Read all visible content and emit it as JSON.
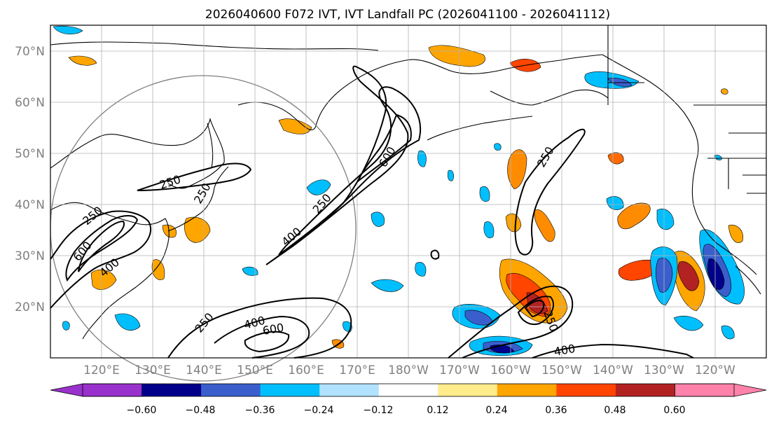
{
  "title": "2026040600 F072 IVT, IVT Landfall PC (2026041100 - 2026041112)",
  "lat_labels": [
    "70°N",
    "60°N",
    "50°N",
    "40°N",
    "30°N",
    "20°N"
  ],
  "lon_labels": [
    "120°E",
    "130°E",
    "140°E",
    "150°E",
    "160°E",
    "170°E",
    "180°W",
    "170°W",
    "160°W",
    "150°W",
    "140°W",
    "130°W",
    "120°W"
  ],
  "colorbar": {
    "ticks": [
      "−0.60",
      "−0.48",
      "−0.36",
      "−0.24",
      "−0.12",
      "0.12",
      "0.24",
      "0.36",
      "0.48",
      "0.60"
    ],
    "colors": [
      "#9932cc",
      "#00008b",
      "#3a5fcd",
      "#00bfff",
      "#b0e2ff",
      "#ffffff",
      "#ffec8b",
      "#ffa500",
      "#ff4500",
      "#b22222",
      "#ff82ab"
    ]
  },
  "contour_labels": [
    "250",
    "250",
    "400",
    "600",
    "600",
    "250",
    "400",
    "250",
    "250",
    "400",
    "600",
    "250",
    "400",
    "250",
    "400"
  ],
  "colors": {
    "grid": "#b3b3b3",
    "frame": "#000000",
    "contour": "#000000",
    "circle": "#7f7f7f"
  }
}
